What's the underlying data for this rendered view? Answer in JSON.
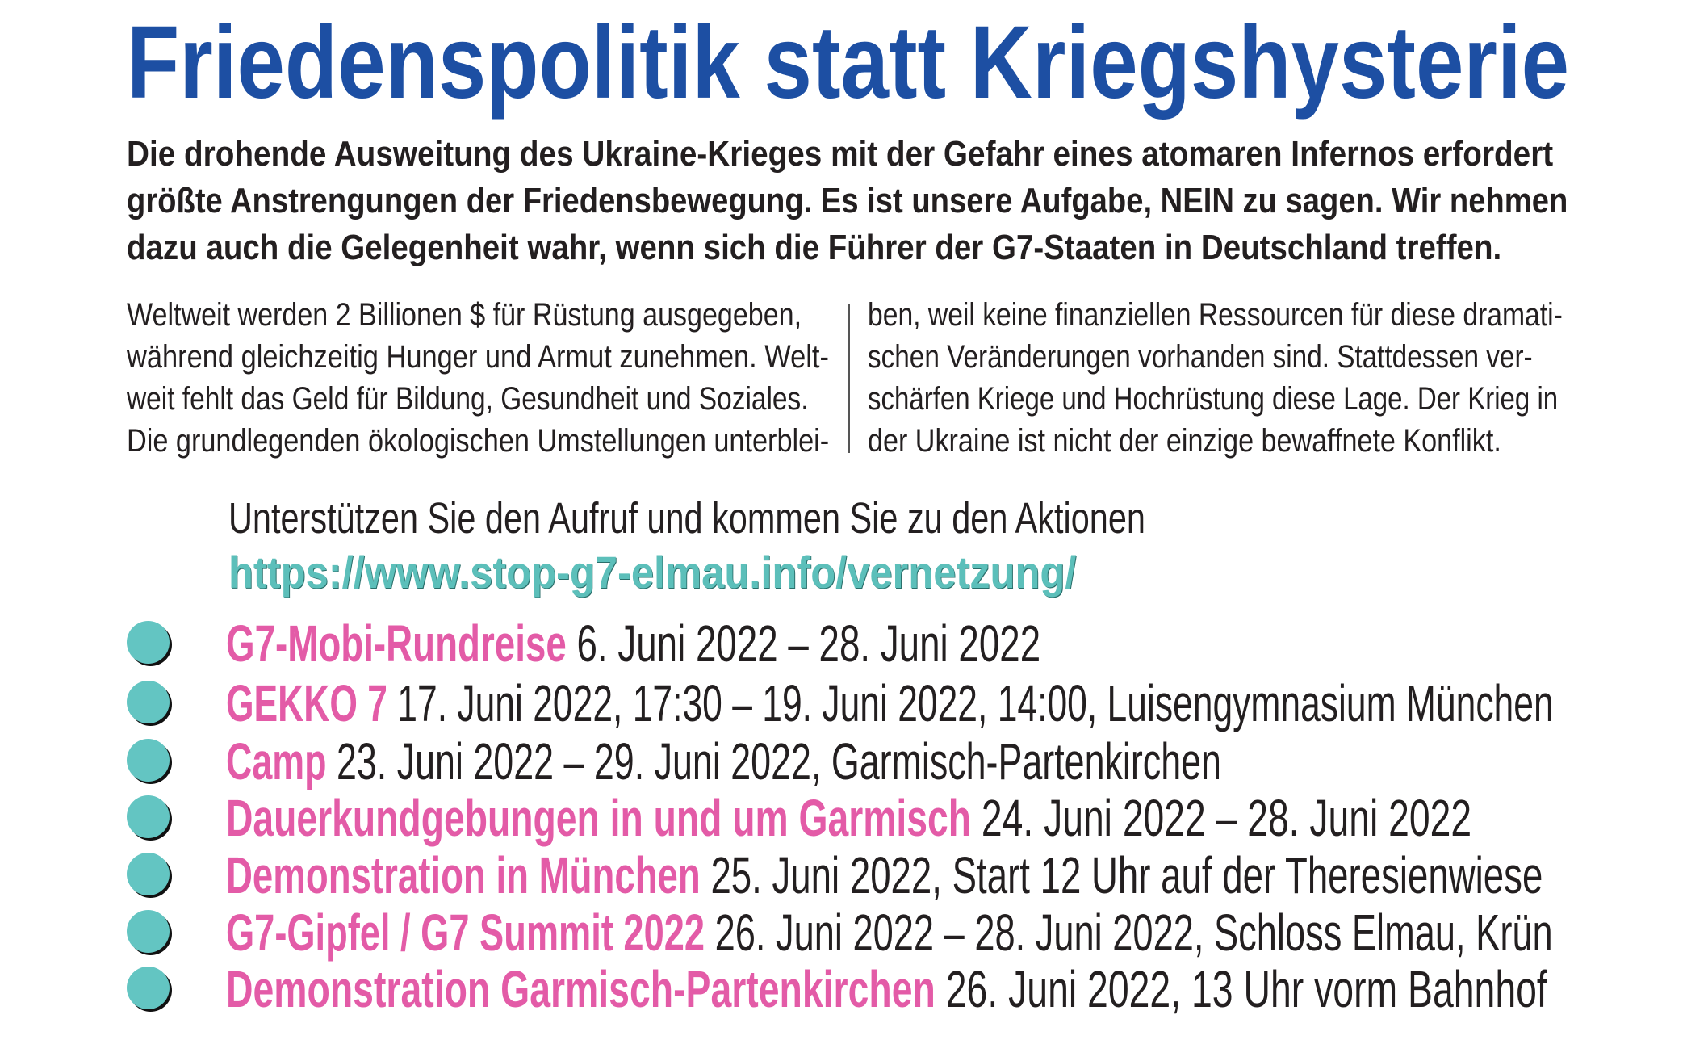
{
  "title": "Friedenspolitik statt Kriegshysterie",
  "lead": [
    "Die drohende Ausweitung des Ukraine-Krieges mit der Gefahr eines atomaren Infernos erfordert",
    "größte Anstrengungen der Friedensbewegung. Es ist unsere Aufgabe, NEIN zu sagen. Wir nehmen",
    "dazu auch die Gelegenheit wahr, wenn sich die Führer der G7-Staaten in Deutschland treffen."
  ],
  "body_left": [
    "Weltweit werden 2 Billionen $ für Rüstung ausgegeben,",
    "während gleichzeitig Hunger und Armut zunehmen. Welt-",
    "weit fehlt das Geld für Bildung, Gesundheit und Soziales.",
    "Die grundlegenden ökologischen Umstellungen unterblei-"
  ],
  "body_right": [
    "ben, weil keine finanziellen Ressourcen für diese dramati-",
    "schen Veränderungen vorhanden sind. Stattdessen ver-",
    "schärfen Kriege und Hochrüstung diese Lage. Der Krieg in",
    "der Ukraine ist nicht der einzige bewaffnete Konflikt."
  ],
  "call_to_action": "Unterstützen Sie den Aufruf und kommen Sie zu den Aktionen",
  "url": "https://www.stop-g7-elmau.info/vernetzung/",
  "events": [
    {
      "name": "G7-Mobi-Rundreise",
      "details": " 6. Juni 2022 – 28. Juni 2022"
    },
    {
      "name": "GEKKO 7",
      "details": " 17. Juni 2022, 17:30 – 19. Juni 2022, 14:00, Luisengymnasium München"
    },
    {
      "name": "Camp",
      "details": " 23. Juni 2022 – 29. Juni 2022, Garmisch-Partenkirchen"
    },
    {
      "name": "Dauerkundgebungen in und um Garmisch",
      "details": " 24. Juni 2022 – 28. Juni 2022"
    },
    {
      "name": "Demonstration in München",
      "details": " 25. Juni 2022, Start 12 Uhr auf der Theresienwiese"
    },
    {
      "name": "G7-Gipfel / G7 Summit 2022",
      "details": " 26. Juni 2022 – 28. Juni 2022, Schloss Elmau, Krün"
    },
    {
      "name": "Demonstration Garmisch-Partenkirchen",
      "details": " 26. Juni 2022, 13 Uhr vorm Bahnhof"
    }
  ],
  "colors": {
    "title": "#1d4fa3",
    "highlight": "#e35ba7",
    "accent": "#63c5c2"
  }
}
